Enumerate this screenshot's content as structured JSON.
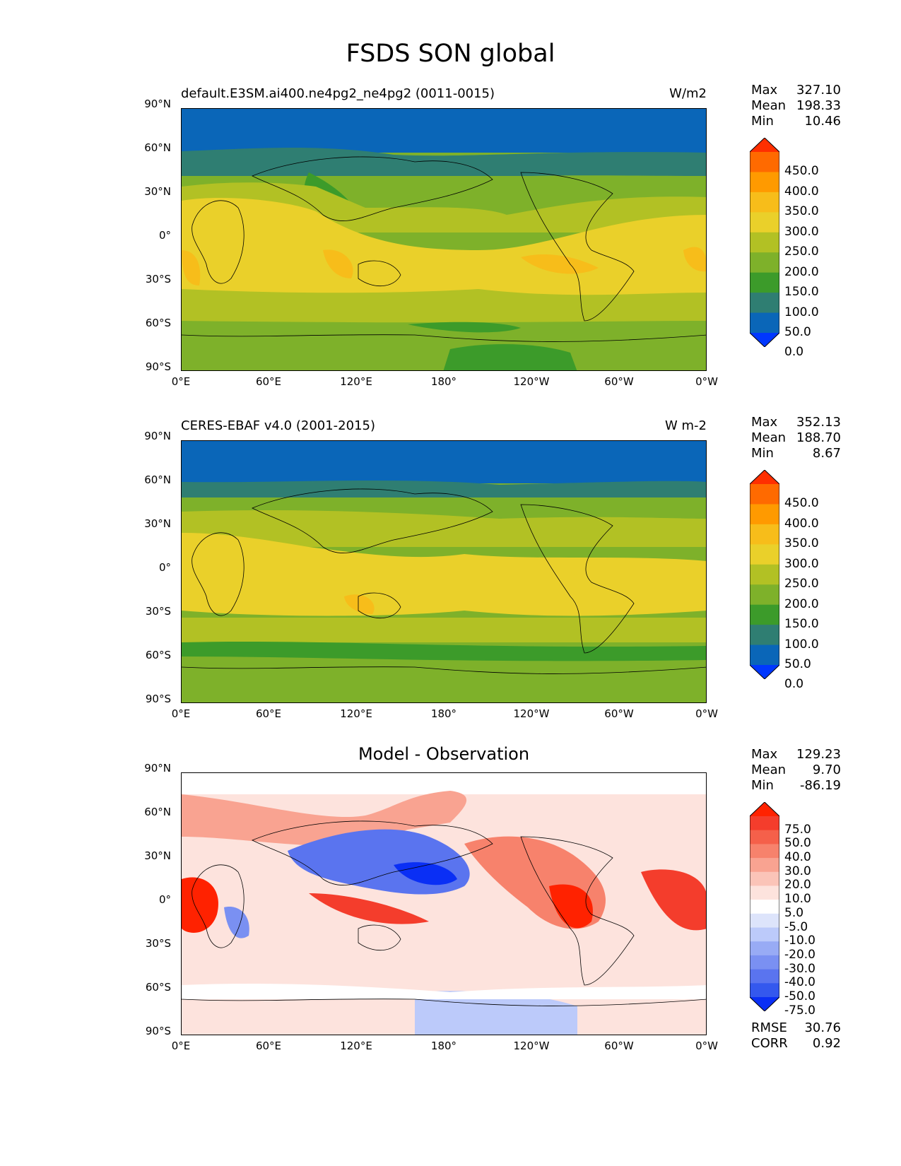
{
  "figure_title": "FSDS SON global",
  "panels": [
    {
      "title_left": "default.E3SM.ai400.ne4pg2_ne4pg2 (0011-0015)",
      "title_right": "W/m2",
      "stats": {
        "max_label": "Max",
        "max": "327.10",
        "mean_label": "Mean",
        "mean": "198.33",
        "min_label": "Min",
        "min": "10.46"
      },
      "colorbar_labels": [
        "450.0",
        "400.0",
        "350.0",
        "300.0",
        "250.0",
        "200.0",
        "150.0",
        "100.0",
        "50.0",
        "0.0"
      ],
      "colorbar_colors": [
        "#ff2f00",
        "#ff6a00",
        "#ff9a00",
        "#f7bd1a",
        "#ead02a",
        "#b2c124",
        "#7eb12a",
        "#3c9b2a",
        "#2f7e72",
        "#0a66b8",
        "#0037ff"
      ]
    },
    {
      "title_left": "CERES-EBAF v4.0 (2001-2015)",
      "title_right": "W m-2",
      "stats": {
        "max_label": "Max",
        "max": "352.13",
        "mean_label": "Mean",
        "mean": "188.70",
        "min_label": "Min",
        "min": "8.67"
      },
      "colorbar_labels": [
        "450.0",
        "400.0",
        "350.0",
        "300.0",
        "250.0",
        "200.0",
        "150.0",
        "100.0",
        "50.0",
        "0.0"
      ],
      "colorbar_colors": [
        "#ff2f00",
        "#ff6a00",
        "#ff9a00",
        "#f7bd1a",
        "#ead02a",
        "#b2c124",
        "#7eb12a",
        "#3c9b2a",
        "#2f7e72",
        "#0a66b8",
        "#0037ff"
      ]
    },
    {
      "title_center": "Model - Observation",
      "stats": {
        "max_label": "Max",
        "max": "129.23",
        "mean_label": "Mean",
        "mean": "9.70",
        "min_label": "Min",
        "min": "-86.19"
      },
      "colorbar_labels": [
        "75.0",
        "50.0",
        "40.0",
        "30.0",
        "20.0",
        "10.0",
        "5.0",
        "-5.0",
        "-10.0",
        "-20.0",
        "-30.0",
        "-40.0",
        "-50.0",
        "-75.0"
      ],
      "colorbar_colors": [
        "#ff2200",
        "#f43d2c",
        "#f5604a",
        "#f7826c",
        "#f9a391",
        "#fbc4b8",
        "#fde3dd",
        "#ffffff",
        "#dde4fb",
        "#bccafa",
        "#98abf5",
        "#7a90f2",
        "#5a74ef",
        "#3458ee",
        "#0a2ff5"
      ],
      "rmse_label": "RMSE",
      "rmse": "30.76",
      "corr_label": "CORR",
      "corr": "0.92"
    }
  ],
  "axes": {
    "lat_ticks": [
      "90°N",
      "60°N",
      "30°N",
      "0°",
      "30°S",
      "60°S",
      "90°S"
    ],
    "lon_ticks": [
      "0°E",
      "60°E",
      "120°E",
      "180°",
      "120°W",
      "60°W",
      "0°W"
    ]
  }
}
